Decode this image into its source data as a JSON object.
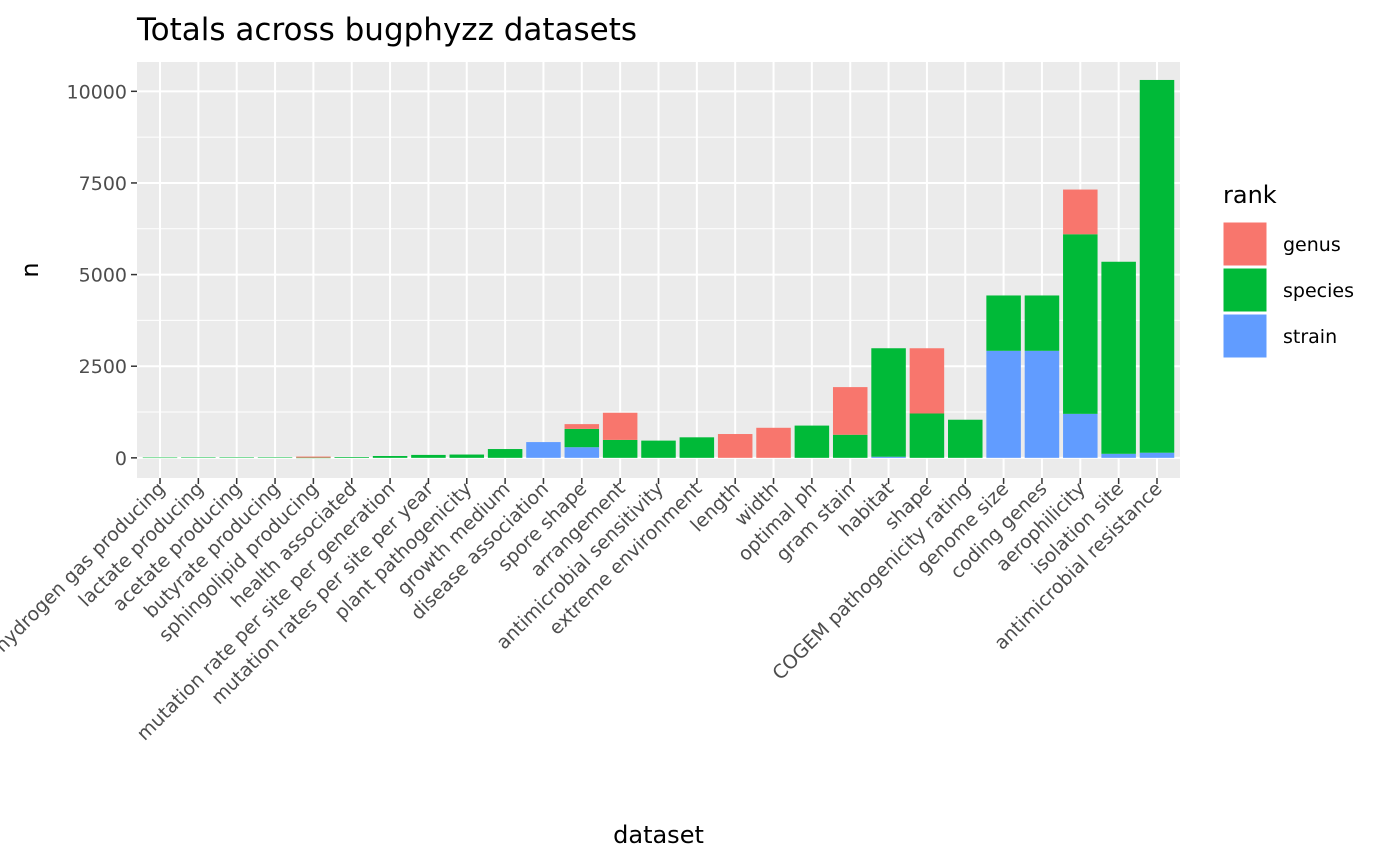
{
  "chart_data": {
    "type": "bar",
    "stacked": true,
    "title": "Totals across bugphyzz datasets",
    "xlabel": "dataset",
    "ylabel": "n",
    "ylim": [
      -550,
      10800
    ],
    "yticks": [
      0,
      2500,
      5000,
      7500,
      10000
    ],
    "grid": true,
    "legend": {
      "title": "rank",
      "placement": "right"
    },
    "categories": [
      "hydrogen gas producing",
      "lactate producing",
      "acetate producing",
      "butyrate producing",
      "sphingolipid producing",
      "health associated",
      "mutation rate per site per generation",
      "mutation rates per site per year",
      "plant pathogenicity",
      "growth medium",
      "disease association",
      "spore shape",
      "arrangement",
      "antimicrobial sensitivity",
      "extreme environment",
      "length",
      "width",
      "optimal ph",
      "gram stain",
      "habitat",
      "shape",
      "COGEM pathogenicity rating",
      "genome size",
      "coding genes",
      "aerophilicity",
      "isolation site",
      "antimicrobial resistance"
    ],
    "series": [
      {
        "name": "strain",
        "color": "#619CFF",
        "values": [
          0,
          0,
          0,
          0,
          0,
          0,
          0,
          0,
          0,
          0,
          430,
          290,
          0,
          0,
          0,
          0,
          0,
          0,
          0,
          30,
          0,
          0,
          2920,
          2920,
          1200,
          110,
          140
        ]
      },
      {
        "name": "species",
        "color": "#00BA38",
        "values": [
          8,
          10,
          12,
          10,
          5,
          20,
          50,
          80,
          90,
          240,
          0,
          500,
          490,
          470,
          560,
          0,
          0,
          880,
          630,
          2960,
          1210,
          1040,
          1510,
          1510,
          4900,
          5240,
          10170
        ]
      },
      {
        "name": "genus",
        "color": "#F8766D",
        "values": [
          0,
          0,
          0,
          0,
          30,
          0,
          0,
          0,
          0,
          0,
          0,
          130,
          740,
          0,
          0,
          650,
          820,
          0,
          1300,
          0,
          1780,
          0,
          0,
          0,
          1220,
          0,
          0
        ]
      }
    ]
  }
}
